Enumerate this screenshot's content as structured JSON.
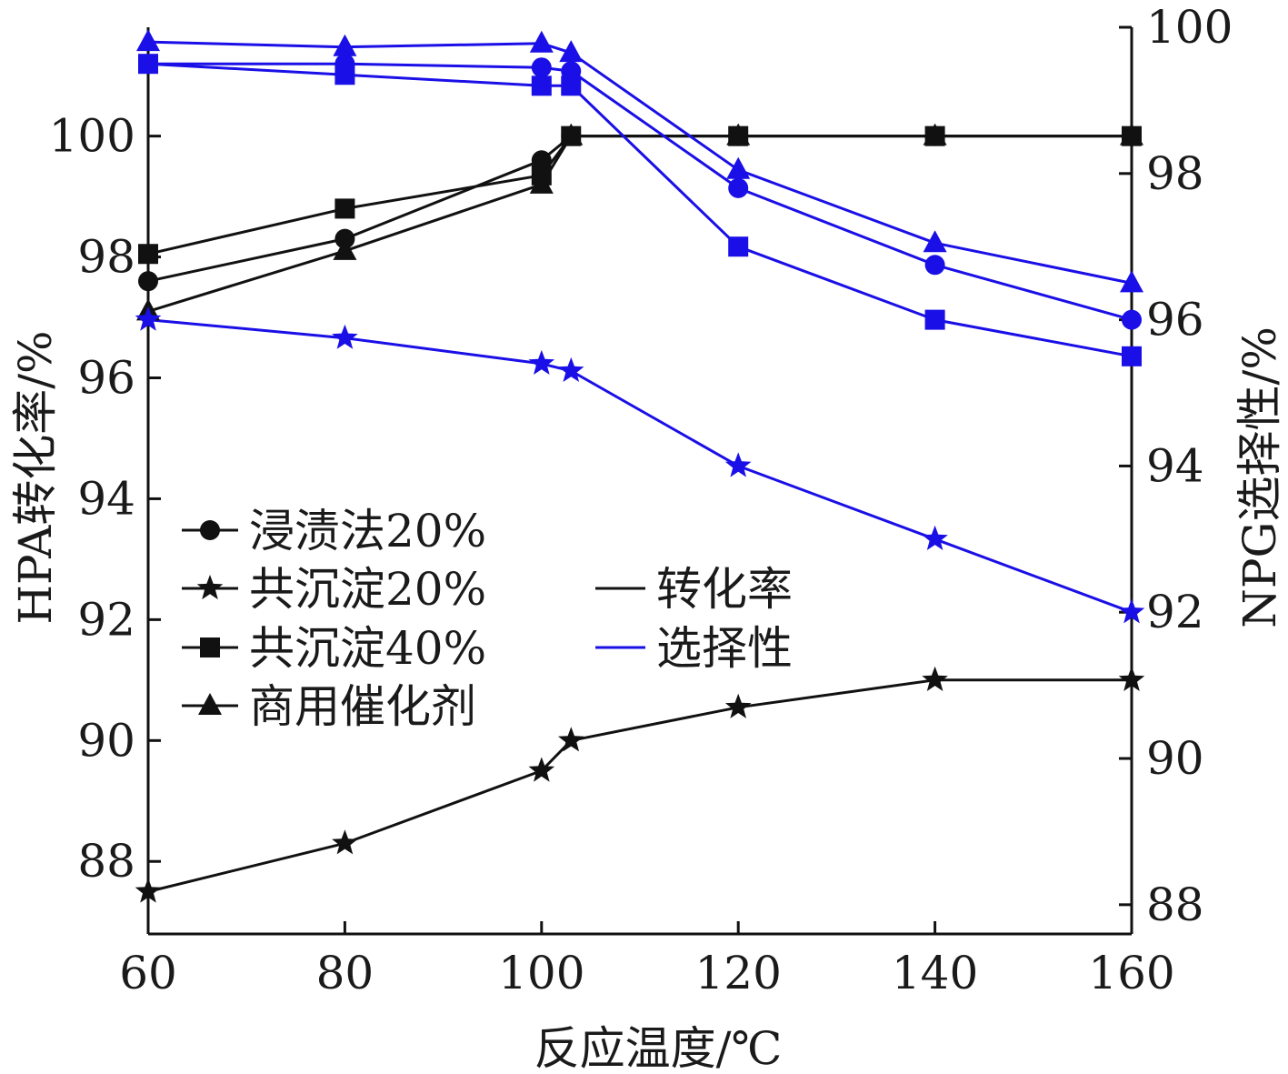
{
  "chart_data": {
    "type": "line",
    "title": "",
    "xlabel": "反应温度/℃",
    "ylabel_left": "HPA转化率/%",
    "ylabel_right": "NPG选择性/%",
    "xlim": [
      60,
      160
    ],
    "ylim_left": [
      86.8,
      101.8
    ],
    "ylim_right": [
      87.6,
      100
    ],
    "x_ticks": [
      60,
      80,
      100,
      120,
      140,
      160
    ],
    "y_left_ticks": [
      88,
      90,
      92,
      94,
      96,
      98,
      100
    ],
    "y_right_ticks": [
      88,
      90,
      92,
      94,
      96,
      98,
      100
    ],
    "grid": false,
    "colors": {
      "conversion": "#111111",
      "selectivity": "#1a0fe6"
    },
    "x": [
      60,
      80,
      100,
      103,
      120,
      140,
      160
    ],
    "series": [
      {
        "name": "浸渍法20%",
        "metric": "conversion",
        "axis": "left",
        "marker": "circle",
        "values": [
          97.6,
          98.3,
          99.6,
          100.0,
          100.0,
          100.0,
          100.0
        ]
      },
      {
        "name": "共沉淀20%",
        "metric": "conversion",
        "axis": "left",
        "marker": "star",
        "values": [
          87.5,
          88.3,
          89.5,
          90.0,
          90.55,
          91.0,
          91.0
        ]
      },
      {
        "name": "共沉淀40%",
        "metric": "conversion",
        "axis": "left",
        "marker": "square",
        "values": [
          98.05,
          98.8,
          99.35,
          100.0,
          100.0,
          100.0,
          100.0
        ]
      },
      {
        "name": "商用催化剂",
        "metric": "conversion",
        "axis": "left",
        "marker": "triangle",
        "values": [
          97.1,
          98.1,
          99.2,
          100.0,
          100.0,
          100.0,
          100.0
        ]
      },
      {
        "name": "浸渍法20%",
        "metric": "selectivity",
        "axis": "right",
        "marker": "circle",
        "values": [
          99.5,
          99.5,
          99.45,
          99.4,
          97.8,
          96.75,
          96.0
        ]
      },
      {
        "name": "共沉淀20%",
        "metric": "selectivity",
        "axis": "right",
        "marker": "star",
        "values": [
          96.0,
          95.75,
          95.4,
          95.3,
          94.0,
          93.0,
          92.0
        ]
      },
      {
        "name": "共沉淀40%",
        "metric": "selectivity",
        "axis": "right",
        "marker": "square",
        "values": [
          99.5,
          99.35,
          99.2,
          99.2,
          97.0,
          96.0,
          95.5
        ]
      },
      {
        "name": "商用催化剂",
        "metric": "selectivity",
        "axis": "right",
        "marker": "triangle",
        "values": [
          99.8,
          99.73,
          99.78,
          99.65,
          98.05,
          97.05,
          96.5
        ]
      }
    ],
    "legend_placement": "lower-left",
    "legend_markers": [
      {
        "label": "浸渍法20%",
        "marker": "circle"
      },
      {
        "label": "共沉淀20%",
        "marker": "star"
      },
      {
        "label": "共沉淀40%",
        "marker": "square"
      },
      {
        "label": "商用催化剂",
        "marker": "triangle"
      }
    ],
    "legend_metrics": [
      {
        "label": "转化率",
        "metric": "conversion"
      },
      {
        "label": "选择性",
        "metric": "selectivity"
      }
    ]
  }
}
